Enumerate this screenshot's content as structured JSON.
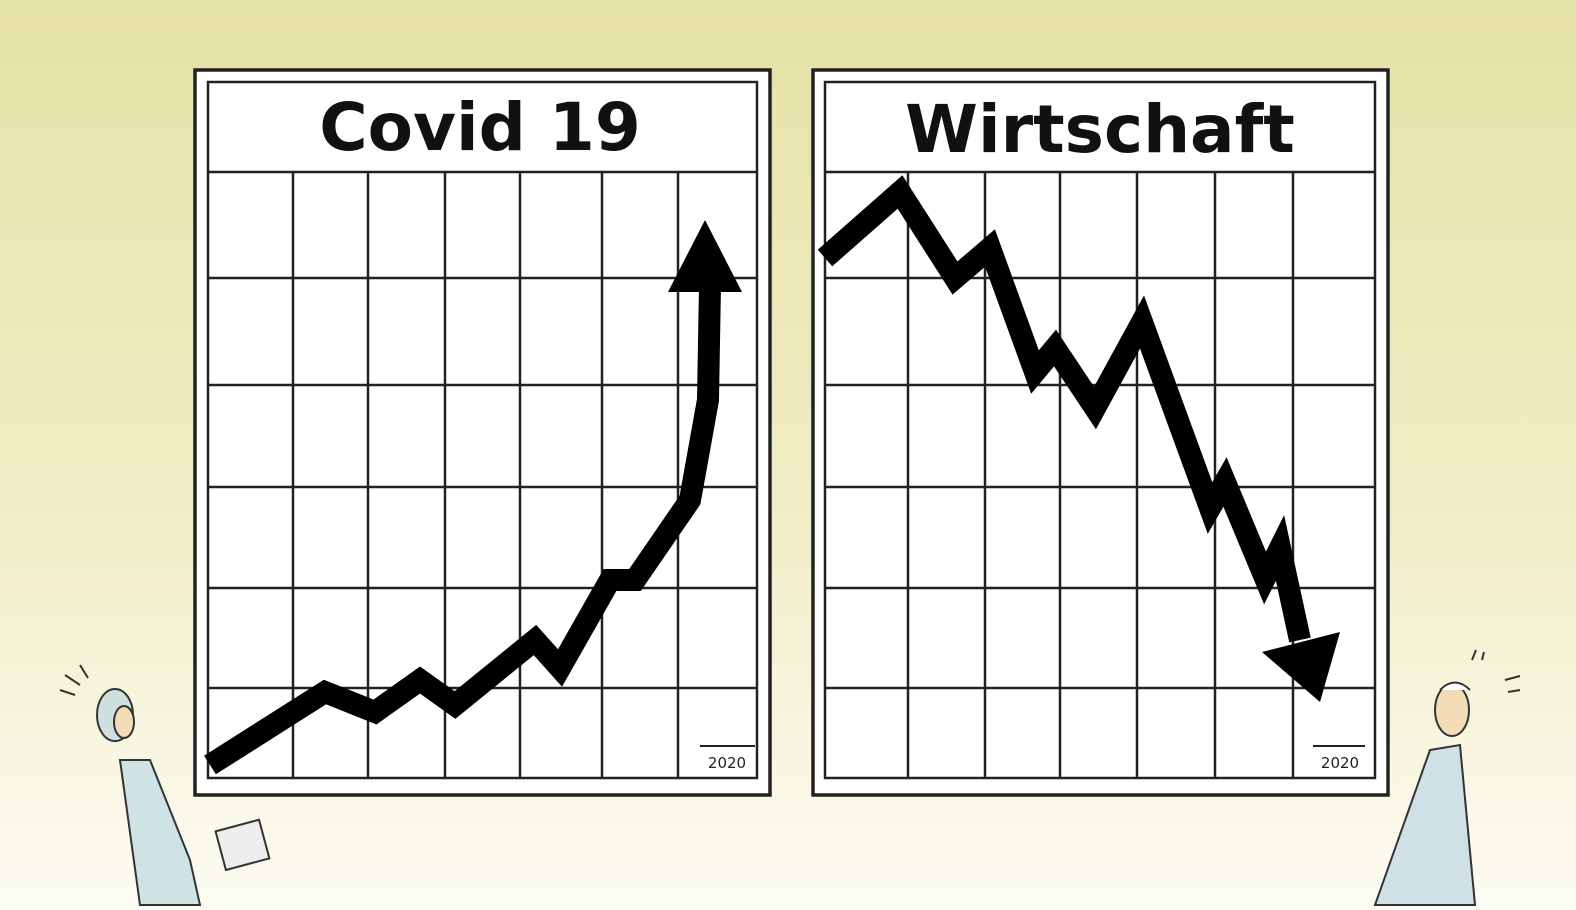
{
  "panels": [
    {
      "title": "Covid 19",
      "year": "2020"
    },
    {
      "title": "Wirtschaft",
      "year": "2020"
    }
  ]
}
